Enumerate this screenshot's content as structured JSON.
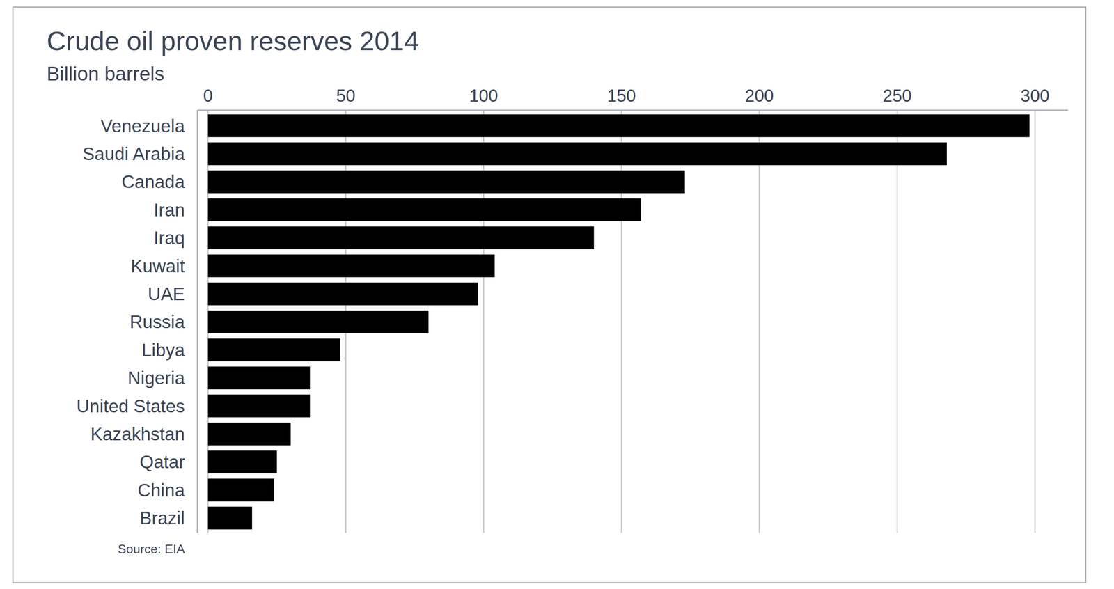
{
  "chart_data": {
    "type": "bar",
    "orientation": "horizontal",
    "title": "Crude oil proven reserves 2014",
    "subtitle": "Billion barrels",
    "source": "Source: EIA",
    "categories": [
      "Venezuela",
      "Saudi Arabia",
      "Canada",
      "Iran",
      "Iraq",
      "Kuwait",
      "UAE",
      "Russia",
      "Libya",
      "Nigeria",
      "United States",
      "Kazakhstan",
      "Qatar",
      "China",
      "Brazil"
    ],
    "values": [
      298,
      268,
      173,
      157,
      140,
      104,
      98,
      80,
      48,
      37,
      37,
      30,
      25,
      24,
      16
    ],
    "color": "#000000",
    "xlim": [
      0,
      312
    ],
    "xticks": [
      0,
      50,
      100,
      150,
      200,
      250,
      300
    ],
    "grid": true
  }
}
